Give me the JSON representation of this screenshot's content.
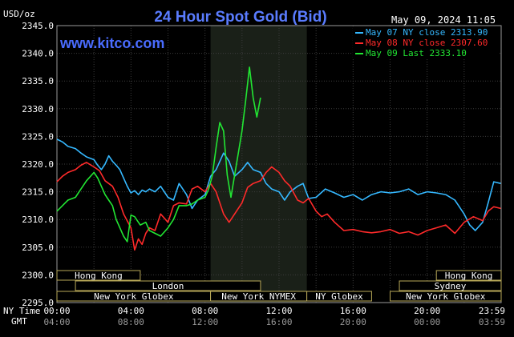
{
  "chart_data": {
    "type": "line",
    "title": "24 Hour Spot Gold (Bid)",
    "watermark": "www.kitco.com",
    "timestamp": "May 09, 2024 11:05",
    "ylabel": "USD/oz",
    "ylim": [
      2295,
      2345
    ],
    "yticks": [
      "2295.0",
      "2300.0",
      "2305.0",
      "2310.0",
      "2315.0",
      "2320.0",
      "2325.0",
      "2330.0",
      "2335.0",
      "2340.0",
      "2345.0"
    ],
    "xlim": [
      0,
      24
    ],
    "ny_time_label": "NY Time",
    "gmt_label": "GMT",
    "ny_ticks": [
      {
        "x": 0,
        "label": "00:00"
      },
      {
        "x": 4,
        "label": "04:00"
      },
      {
        "x": 8,
        "label": "08:00"
      },
      {
        "x": 12,
        "label": "12:00"
      },
      {
        "x": 16,
        "label": "16:00"
      },
      {
        "x": 20,
        "label": "20:00"
      },
      {
        "x": 23.98,
        "label": "23:59"
      }
    ],
    "gmt_ticks": [
      "04:00",
      "08:00",
      "12:00",
      "16:00",
      "20:00",
      "00:00",
      "03:59"
    ],
    "nymex_hours": [
      8.3,
      13.5
    ],
    "sessions": [
      {
        "label": "Hong Kong",
        "start": 0,
        "end": 4.5,
        "row": 0
      },
      {
        "label": "London",
        "start": 1.0,
        "end": 11.0,
        "row": 1
      },
      {
        "label": "New York Globex",
        "start": 0,
        "end": 8.3,
        "row": 2
      },
      {
        "label": "New York NYMEX",
        "start": 8.3,
        "end": 13.5,
        "row": 2
      },
      {
        "label": "NY Globex",
        "start": 13.5,
        "end": 17.0,
        "row": 2
      },
      {
        "label": "Hong Kong",
        "start": 20.5,
        "end": 24,
        "row": 0
      },
      {
        "label": "Sydney",
        "start": 18.5,
        "end": 24,
        "row": 1
      },
      {
        "label": "New York Globex",
        "start": 18.0,
        "end": 24,
        "row": 2
      }
    ],
    "legend_placement": "top-right",
    "series": [
      {
        "name": "May 07 NY close 2313.90",
        "color": "#35b8ff",
        "x": [
          0,
          0.3,
          0.6,
          1.0,
          1.3,
          1.6,
          2.0,
          2.2,
          2.4,
          2.6,
          2.8,
          3.0,
          3.2,
          3.4,
          3.6,
          3.8,
          4.0,
          4.2,
          4.4,
          4.6,
          4.8,
          5.0,
          5.3,
          5.6,
          6.0,
          6.3,
          6.6,
          7.0,
          7.3,
          7.6,
          8.0,
          8.3,
          8.6,
          9.0,
          9.3,
          9.6,
          10.0,
          10.3,
          10.6,
          11.0,
          11.3,
          11.6,
          12.0,
          12.3,
          12.6,
          13.0,
          13.3,
          13.6,
          14.0,
          14.5,
          15.0,
          15.5,
          16.0,
          16.5,
          17.0,
          17.5,
          18.0,
          18.5,
          19.0,
          19.5,
          20.0,
          20.5,
          21.0,
          21.5,
          22.0,
          22.3,
          22.6,
          23.0,
          23.3,
          23.6,
          23.98
        ],
        "y": [
          2324.5,
          2324.0,
          2323.2,
          2322.8,
          2322.0,
          2321.3,
          2320.8,
          2319.8,
          2319.0,
          2320.0,
          2321.5,
          2320.5,
          2319.8,
          2319.0,
          2317.5,
          2316.0,
          2314.8,
          2315.2,
          2314.5,
          2315.3,
          2315.0,
          2315.5,
          2315.0,
          2316.0,
          2314.0,
          2313.5,
          2316.5,
          2314.5,
          2312.0,
          2313.5,
          2314.5,
          2317.8,
          2319.0,
          2322.0,
          2320.5,
          2317.8,
          2319.0,
          2320.3,
          2319.0,
          2318.5,
          2316.5,
          2315.5,
          2315.0,
          2313.5,
          2315.0,
          2316.0,
          2316.5,
          2313.8,
          2314.0,
          2315.5,
          2314.8,
          2314.0,
          2314.5,
          2313.5,
          2314.5,
          2315.0,
          2314.8,
          2315.0,
          2315.5,
          2314.5,
          2315.0,
          2314.8,
          2314.5,
          2313.5,
          2311.0,
          2309.0,
          2308.0,
          2309.5,
          2313.0,
          2316.8,
          2316.5
        ]
      },
      {
        "name": "May 08 NY close 2307.60",
        "color": "#ff2a2a",
        "x": [
          0,
          0.3,
          0.6,
          1.0,
          1.3,
          1.6,
          2.0,
          2.3,
          2.6,
          3.0,
          3.3,
          3.6,
          4.0,
          4.2,
          4.4,
          4.6,
          4.8,
          5.0,
          5.3,
          5.6,
          6.0,
          6.3,
          6.6,
          7.0,
          7.3,
          7.6,
          8.0,
          8.3,
          8.6,
          9.0,
          9.3,
          9.6,
          10.0,
          10.3,
          10.6,
          11.0,
          11.3,
          11.6,
          12.0,
          12.3,
          12.6,
          13.0,
          13.3,
          13.6,
          14.0,
          14.3,
          14.6,
          15.0,
          15.5,
          16.0,
          16.5,
          17.0,
          17.5,
          18.0,
          18.5,
          19.0,
          19.5,
          20.0,
          20.5,
          21.0,
          21.5,
          22.0,
          22.5,
          23.0,
          23.3,
          23.6,
          23.98
        ],
        "y": [
          2316.8,
          2317.8,
          2318.5,
          2319.0,
          2319.8,
          2320.3,
          2319.5,
          2318.8,
          2317.0,
          2316.0,
          2314.0,
          2311.0,
          2308.5,
          2304.5,
          2306.5,
          2305.5,
          2307.5,
          2308.5,
          2308.0,
          2311.0,
          2309.5,
          2312.5,
          2313.0,
          2312.8,
          2315.5,
          2316.0,
          2315.0,
          2316.5,
          2315.0,
          2311.0,
          2309.5,
          2311.0,
          2313.0,
          2315.8,
          2316.5,
          2317.0,
          2318.5,
          2319.5,
          2318.5,
          2317.0,
          2316.0,
          2313.5,
          2313.0,
          2313.8,
          2311.5,
          2310.5,
          2311.0,
          2309.5,
          2308.0,
          2308.2,
          2307.8,
          2307.6,
          2307.8,
          2308.2,
          2307.5,
          2307.8,
          2307.2,
          2308.0,
          2308.5,
          2309.0,
          2307.5,
          2309.5,
          2310.5,
          2309.8,
          2311.5,
          2312.3,
          2312.0
        ]
      },
      {
        "name": "May 09 Last 2333.10",
        "color": "#22e633",
        "x": [
          0,
          0.3,
          0.6,
          1.0,
          1.3,
          1.6,
          2.0,
          2.2,
          2.4,
          2.6,
          2.8,
          3.0,
          3.2,
          3.4,
          3.6,
          3.8,
          4.0,
          4.2,
          4.5,
          4.8,
          5.0,
          5.3,
          5.6,
          6.0,
          6.3,
          6.6,
          7.0,
          7.3,
          7.6,
          8.0,
          8.2,
          8.4,
          8.6,
          8.8,
          9.0,
          9.2,
          9.4,
          9.6,
          9.8,
          10.0,
          10.2,
          10.4,
          10.6,
          10.8,
          11.0
        ],
        "y": [
          2311.5,
          2312.5,
          2313.5,
          2314.0,
          2315.5,
          2317.0,
          2318.5,
          2317.5,
          2316.0,
          2314.5,
          2313.5,
          2312.5,
          2310.0,
          2308.5,
          2307.0,
          2306.0,
          2310.8,
          2310.5,
          2309.0,
          2309.5,
          2308.0,
          2307.5,
          2307.0,
          2308.5,
          2310.0,
          2312.5,
          2312.5,
          2312.8,
          2313.5,
          2314.0,
          2315.5,
          2318.0,
          2323.0,
          2327.5,
          2326.0,
          2318.0,
          2314.0,
          2318.0,
          2322.0,
          2326.0,
          2331.5,
          2337.5,
          2332.0,
          2328.5,
          2332.0
        ]
      }
    ]
  }
}
